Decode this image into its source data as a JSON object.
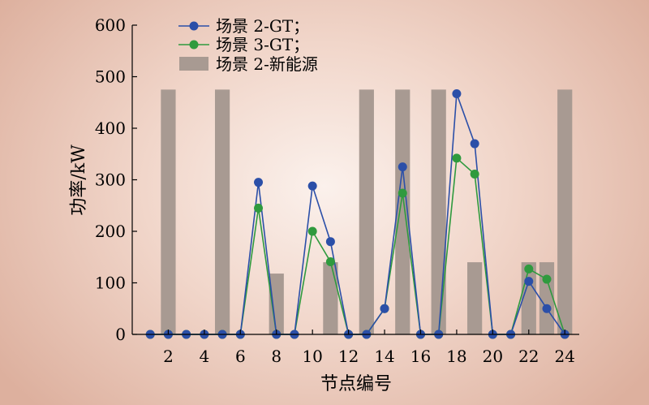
{
  "chart_data": {
    "type": "bar+line",
    "xlabel": "节点编号",
    "ylabel": "功率/kW",
    "xlim": [
      0,
      24.8
    ],
    "ylim": [
      0,
      600
    ],
    "xticks": [
      "2",
      "4",
      "6",
      "8",
      "10",
      "12",
      "14",
      "16",
      "18",
      "20",
      "22",
      "24"
    ],
    "yticks": [
      "0",
      "100",
      "200",
      "300",
      "400",
      "500",
      "600"
    ],
    "legend_position": "top-left",
    "bars": {
      "name": "场景 2-新能源",
      "color": "#a89a92",
      "x": [
        2,
        5,
        8,
        11,
        13,
        15,
        17,
        19,
        22,
        23,
        24
      ],
      "values": [
        475,
        475,
        118,
        140,
        475,
        475,
        475,
        140,
        140,
        140,
        475
      ]
    },
    "series": [
      {
        "name": "场景 2-GT；",
        "color": "#2b4fa8",
        "x": [
          1,
          2,
          3,
          4,
          5,
          6,
          7,
          8,
          9,
          10,
          11,
          12,
          13,
          14,
          15,
          16,
          17,
          18,
          19,
          20,
          21,
          22,
          23,
          24
        ],
        "values": [
          0,
          0,
          0,
          0,
          0,
          0,
          295,
          0,
          0,
          288,
          180,
          0,
          0,
          50,
          325,
          0,
          0,
          467,
          370,
          0,
          0,
          103,
          50,
          0
        ]
      },
      {
        "name": "场景 3-GT；",
        "color": "#2f9a3e",
        "x": [
          1,
          2,
          3,
          4,
          5,
          6,
          7,
          8,
          9,
          10,
          11,
          12,
          13,
          14,
          15,
          16,
          17,
          18,
          19,
          20,
          21,
          22,
          23,
          24
        ],
        "values": [
          0,
          0,
          0,
          0,
          0,
          0,
          245,
          0,
          0,
          200,
          141,
          0,
          0,
          50,
          274,
          0,
          0,
          342,
          311,
          0,
          0,
          127,
          107,
          0
        ]
      }
    ]
  }
}
